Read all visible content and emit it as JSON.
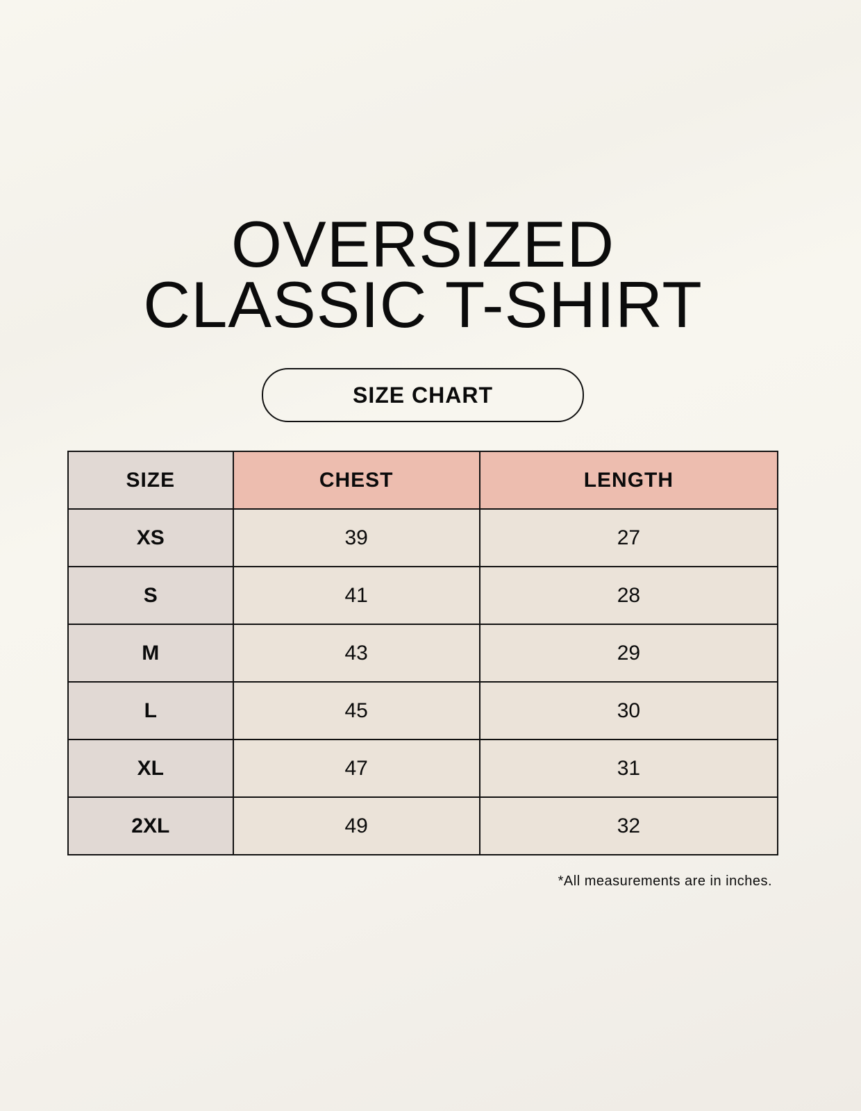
{
  "title": {
    "line1": "OVERSIZED",
    "line2": "CLASSIC T-SHIRT"
  },
  "badge": "SIZE CHART",
  "table": {
    "headers": [
      "SIZE",
      "CHEST",
      "LENGTH"
    ],
    "rows": [
      [
        "XS",
        "39",
        "27"
      ],
      [
        "S",
        "41",
        "28"
      ],
      [
        "M",
        "43",
        "29"
      ],
      [
        "L",
        "45",
        "30"
      ],
      [
        "XL",
        "47",
        "31"
      ],
      [
        "2XL",
        "49",
        "32"
      ]
    ]
  },
  "footnote": "*All measurements are in inches.",
  "colors": {
    "size_column": "#e1d9d4",
    "header_accent": "#edbdaf",
    "cell": "#ebe3d9"
  }
}
